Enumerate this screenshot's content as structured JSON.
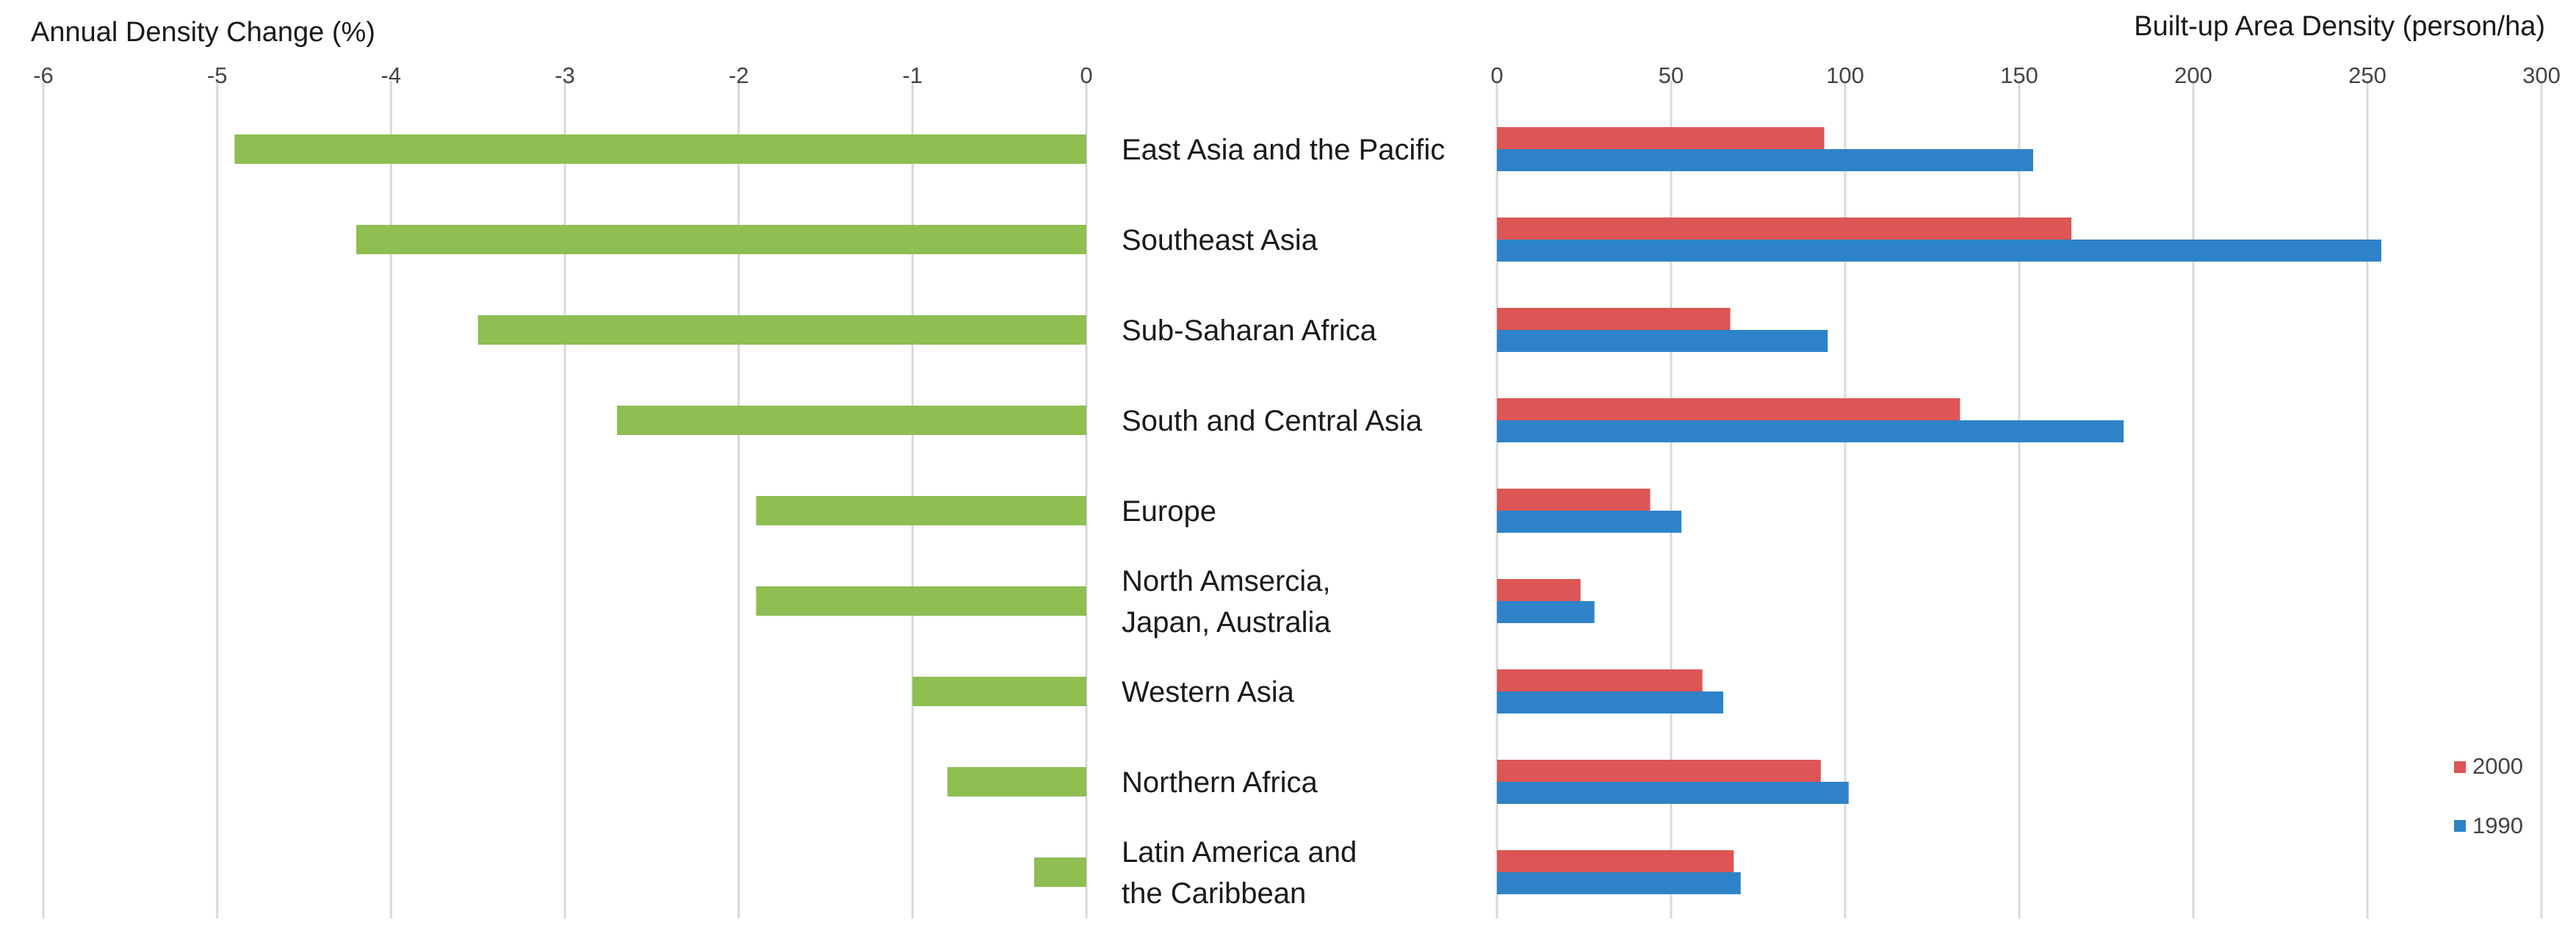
{
  "chart_data": [
    {
      "type": "bar",
      "orientation": "horizontal",
      "title": "Annual Density Change (%)",
      "xlim": [
        -6,
        0
      ],
      "ticks": [
        "-6",
        "-5",
        "-4",
        "-3",
        "-2",
        "-1",
        "0"
      ],
      "categories": [
        "East Asia and the Pacific",
        "Southeast Asia",
        "Sub-Saharan Africa",
        "South and Central Asia",
        "Europe",
        "North Amsercia, Japan, Australia",
        "Western Asia",
        "Northern Africa",
        "Latin America and the Caribbean"
      ],
      "values": [
        -4.9,
        -4.2,
        -3.5,
        -2.7,
        -1.9,
        -1.9,
        -1.0,
        -0.8,
        -0.3
      ],
      "color": "#8fbe53",
      "grid": true
    },
    {
      "type": "bar",
      "orientation": "horizontal",
      "title": "Built-up Area Density (person/ha)",
      "xlim": [
        0,
        300
      ],
      "ticks": [
        "0",
        "50",
        "100",
        "150",
        "200",
        "250",
        "300"
      ],
      "categories_ref": "same as left chart",
      "series": [
        {
          "name": "2000",
          "color": "#dd5555",
          "values": [
            94,
            165,
            67,
            133,
            44,
            24,
            59,
            93,
            68
          ]
        },
        {
          "name": "1990",
          "color": "#2e83c8",
          "values": [
            154,
            254,
            95,
            180,
            53,
            28,
            65,
            101,
            70
          ]
        }
      ],
      "legend": "bottom-right",
      "grid": true
    }
  ],
  "category_labels": [
    [
      "East Asia and the Pacific"
    ],
    [
      "Southeast Asia"
    ],
    [
      "Sub-Saharan Africa"
    ],
    [
      "South and Central Asia"
    ],
    [
      "Europe"
    ],
    [
      "North Amsercia,",
      "Japan, Australia"
    ],
    [
      "Western Asia"
    ],
    [
      "Northern Africa"
    ],
    [
      "Latin America and",
      "the Caribbean"
    ]
  ]
}
